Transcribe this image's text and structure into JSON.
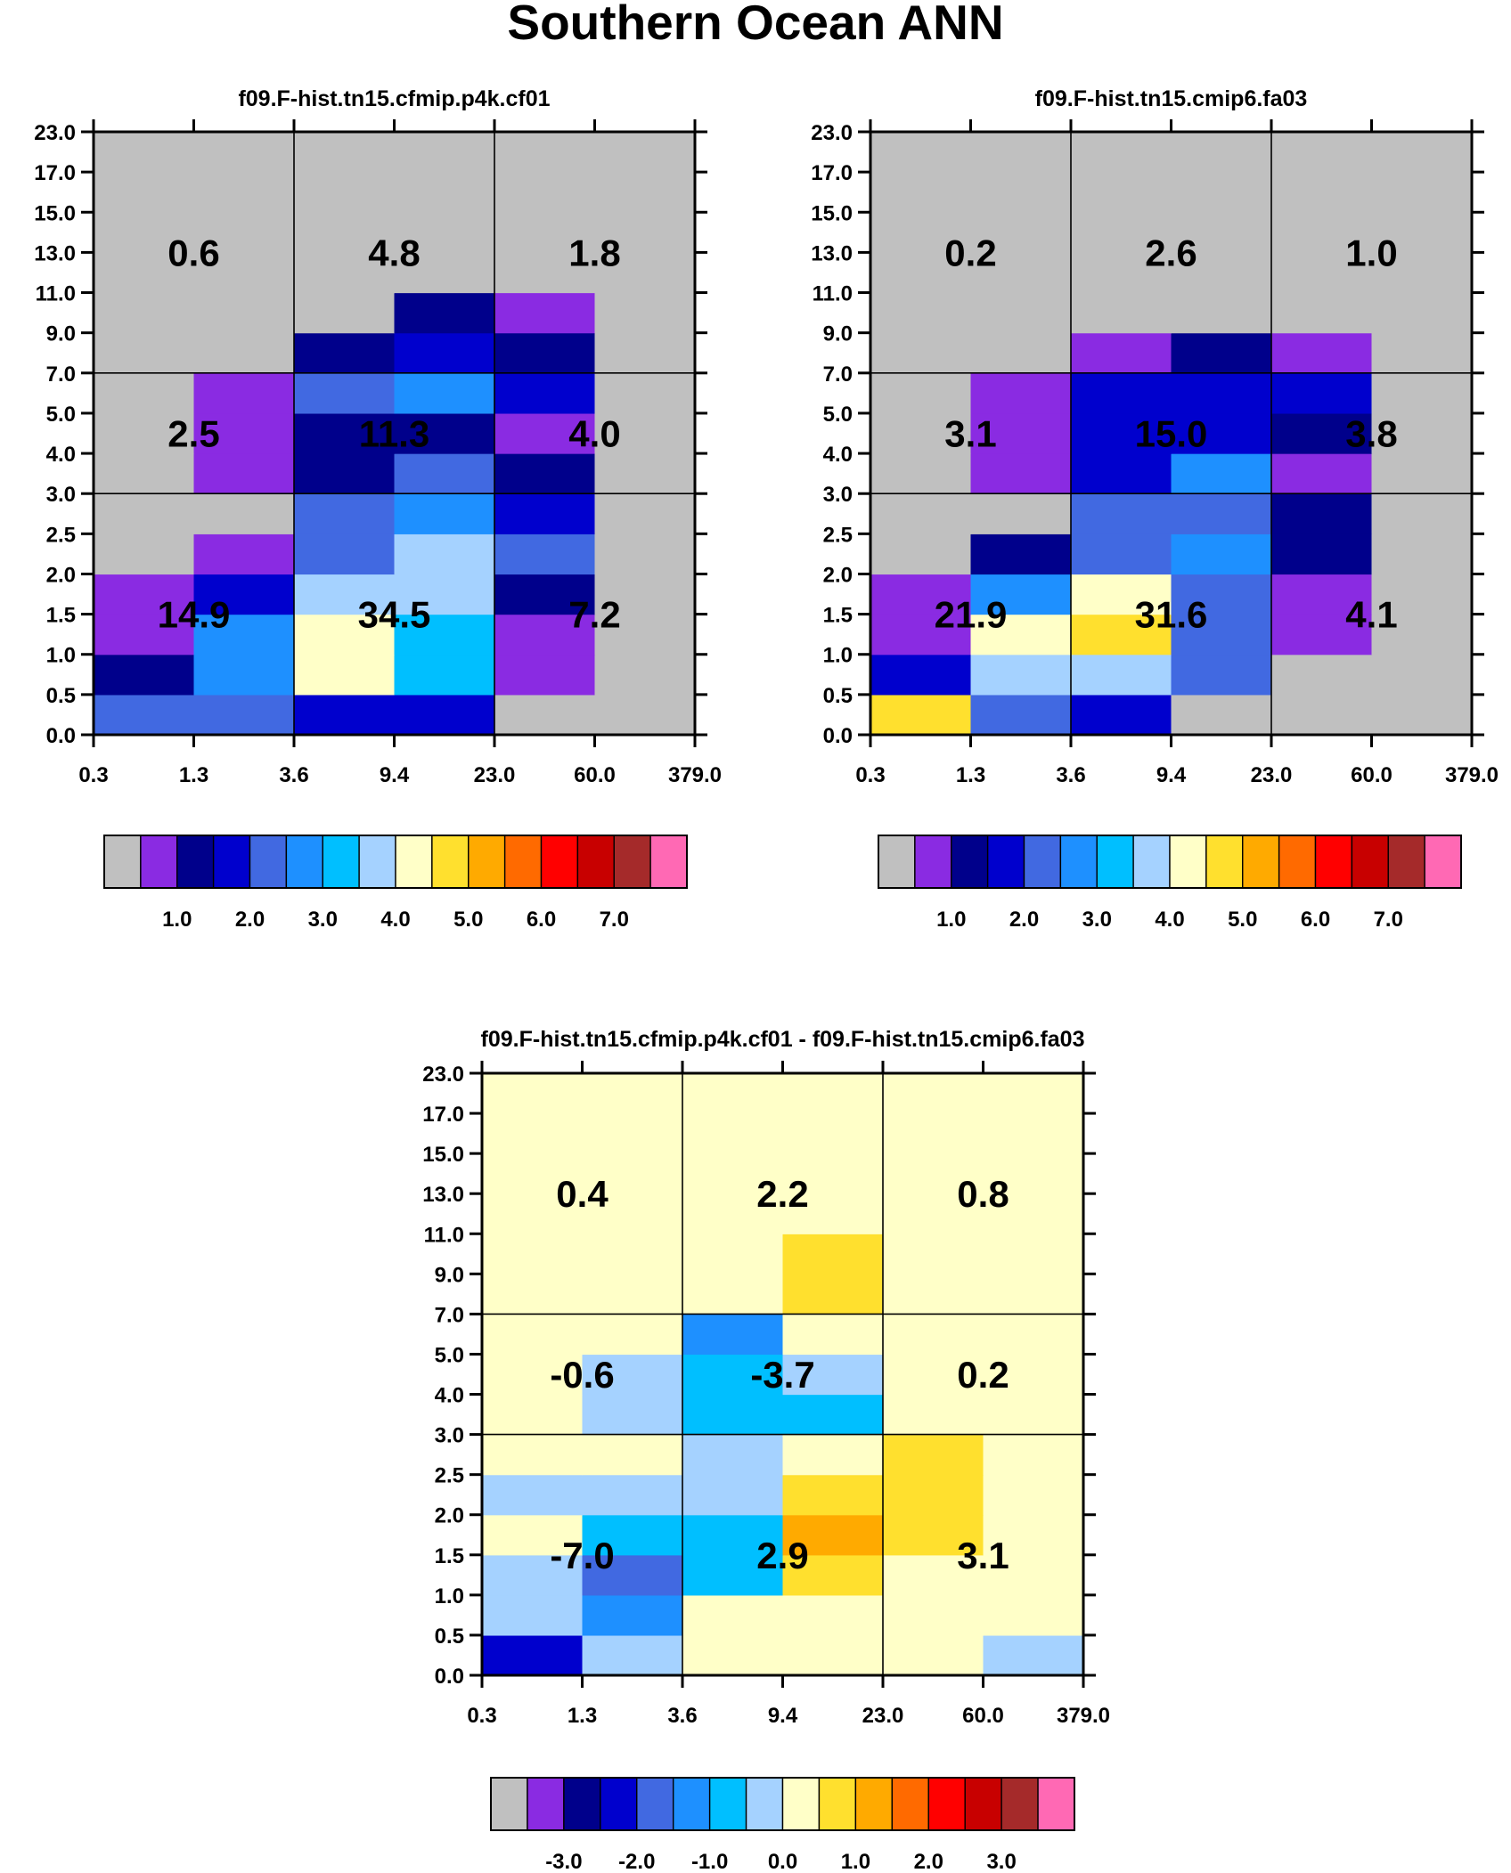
{
  "figure_title": "Southern Ocean ANN",
  "palette": [
    "#c0c0c0",
    "#8a2be2",
    "#00008b",
    "#0000cd",
    "#4169e1",
    "#1e90ff",
    "#00bfff",
    "#a5d2ff",
    "#ffffc8",
    "#ffe02e",
    "#ffaa00",
    "#ff6a00",
    "#ff0000",
    "#c80000",
    "#a52a2a",
    "#ff69b4"
  ],
  "chart_data": [
    {
      "type": "heatmap",
      "title": "f09.F-hist.tn15.cfmip.p4k.cf01",
      "x_ticks": [
        "0.3",
        "1.3",
        "3.6",
        "9.4",
        "23.0",
        "60.0",
        "379.0"
      ],
      "y_ticks": [
        "0.0",
        "0.5",
        "1.0",
        "1.5",
        "2.0",
        "2.5",
        "3.0",
        "4.0",
        "5.0",
        "7.0",
        "9.0",
        "11.0",
        "13.0",
        "15.0",
        "17.0",
        "23.0"
      ],
      "grid_colors": [
        [
          4,
          4,
          3,
          3,
          0,
          0
        ],
        [
          2,
          5,
          8,
          6,
          1,
          0
        ],
        [
          1,
          5,
          8,
          6,
          1,
          0
        ],
        [
          1,
          3,
          7,
          7,
          2,
          0
        ],
        [
          0,
          1,
          4,
          7,
          4,
          0
        ],
        [
          0,
          0,
          4,
          5,
          3,
          0
        ],
        [
          0,
          1,
          2,
          4,
          2,
          0
        ],
        [
          0,
          1,
          2,
          2,
          1,
          0
        ],
        [
          0,
          1,
          4,
          5,
          3,
          0
        ],
        [
          0,
          0,
          2,
          3,
          2,
          0
        ],
        [
          0,
          0,
          0,
          2,
          1,
          0
        ],
        [
          0,
          0,
          0,
          0,
          0,
          0
        ],
        [
          0,
          0,
          0,
          0,
          0,
          0
        ],
        [
          0,
          0,
          0,
          0,
          0,
          0
        ],
        [
          0,
          0,
          0,
          0,
          0,
          0
        ]
      ],
      "boxes": [
        {
          "label": "14.9",
          "col": 0,
          "row": 0
        },
        {
          "label": "34.5",
          "col": 1,
          "row": 0
        },
        {
          "label": "7.2",
          "col": 2,
          "row": 0
        },
        {
          "label": "2.5",
          "col": 0,
          "row": 1
        },
        {
          "label": "11.3",
          "col": 1,
          "row": 1
        },
        {
          "label": "4.0",
          "col": 2,
          "row": 1
        },
        {
          "label": "0.6",
          "col": 0,
          "row": 2
        },
        {
          "label": "4.8",
          "col": 1,
          "row": 2
        },
        {
          "label": "1.8",
          "col": 2,
          "row": 2
        }
      ],
      "colorbar_labels": [
        "1.0",
        "2.0",
        "3.0",
        "4.0",
        "5.0",
        "6.0",
        "7.0"
      ]
    },
    {
      "type": "heatmap",
      "title": "f09.F-hist.tn15.cmip6.fa03",
      "x_ticks": [
        "0.3",
        "1.3",
        "3.6",
        "9.4",
        "23.0",
        "60.0",
        "379.0"
      ],
      "y_ticks": [
        "0.0",
        "0.5",
        "1.0",
        "1.5",
        "2.0",
        "2.5",
        "3.0",
        "4.0",
        "5.0",
        "7.0",
        "9.0",
        "11.0",
        "13.0",
        "15.0",
        "17.0",
        "23.0"
      ],
      "grid_colors": [
        [
          9,
          4,
          3,
          0,
          0,
          0
        ],
        [
          3,
          7,
          7,
          4,
          0,
          0
        ],
        [
          1,
          8,
          9,
          4,
          1,
          0
        ],
        [
          1,
          5,
          8,
          4,
          1,
          0
        ],
        [
          0,
          2,
          4,
          5,
          2,
          0
        ],
        [
          0,
          0,
          4,
          4,
          2,
          0
        ],
        [
          0,
          1,
          3,
          5,
          1,
          0
        ],
        [
          0,
          1,
          3,
          3,
          2,
          0
        ],
        [
          0,
          1,
          3,
          3,
          3,
          0
        ],
        [
          0,
          0,
          1,
          2,
          1,
          0
        ],
        [
          0,
          0,
          0,
          0,
          0,
          0
        ],
        [
          0,
          0,
          0,
          0,
          0,
          0
        ],
        [
          0,
          0,
          0,
          0,
          0,
          0
        ],
        [
          0,
          0,
          0,
          0,
          0,
          0
        ],
        [
          0,
          0,
          0,
          0,
          0,
          0
        ]
      ],
      "boxes": [
        {
          "label": "21.9",
          "col": 0,
          "row": 0
        },
        {
          "label": "31.6",
          "col": 1,
          "row": 0
        },
        {
          "label": "4.1",
          "col": 2,
          "row": 0
        },
        {
          "label": "3.1",
          "col": 0,
          "row": 1
        },
        {
          "label": "15.0",
          "col": 1,
          "row": 1
        },
        {
          "label": "3.8",
          "col": 2,
          "row": 1
        },
        {
          "label": "0.2",
          "col": 0,
          "row": 2
        },
        {
          "label": "2.6",
          "col": 1,
          "row": 2
        },
        {
          "label": "1.0",
          "col": 2,
          "row": 2
        }
      ],
      "colorbar_labels": [
        "1.0",
        "2.0",
        "3.0",
        "4.0",
        "5.0",
        "6.0",
        "7.0"
      ]
    },
    {
      "type": "heatmap",
      "title": "f09.F-hist.tn15.cfmip.p4k.cf01 - f09.F-hist.tn15.cmip6.fa03",
      "x_ticks": [
        "0.3",
        "1.3",
        "3.6",
        "9.4",
        "23.0",
        "60.0",
        "379.0"
      ],
      "y_ticks": [
        "0.0",
        "0.5",
        "1.0",
        "1.5",
        "2.0",
        "2.5",
        "3.0",
        "4.0",
        "5.0",
        "7.0",
        "9.0",
        "11.0",
        "13.0",
        "15.0",
        "17.0",
        "23.0"
      ],
      "grid_colors": [
        [
          3,
          7,
          8,
          8,
          8,
          7
        ],
        [
          7,
          5,
          8,
          8,
          8,
          8
        ],
        [
          7,
          4,
          6,
          9,
          8,
          8
        ],
        [
          8,
          6,
          6,
          10,
          9,
          8
        ],
        [
          7,
          7,
          7,
          9,
          9,
          8
        ],
        [
          8,
          8,
          7,
          8,
          9,
          8
        ],
        [
          8,
          7,
          6,
          6,
          8,
          8
        ],
        [
          8,
          7,
          6,
          7,
          8,
          8
        ],
        [
          8,
          8,
          5,
          8,
          8,
          8
        ],
        [
          8,
          8,
          8,
          9,
          8,
          8
        ],
        [
          8,
          8,
          8,
          9,
          8,
          8
        ],
        [
          8,
          8,
          8,
          8,
          8,
          8
        ],
        [
          8,
          8,
          8,
          8,
          8,
          8
        ],
        [
          8,
          8,
          8,
          8,
          8,
          8
        ],
        [
          8,
          8,
          8,
          8,
          8,
          8
        ]
      ],
      "boxes": [
        {
          "label": "-7.0",
          "col": 0,
          "row": 0
        },
        {
          "label": "2.9",
          "col": 1,
          "row": 0
        },
        {
          "label": "3.1",
          "col": 2,
          "row": 0
        },
        {
          "label": "-0.6",
          "col": 0,
          "row": 1
        },
        {
          "label": "-3.7",
          "col": 1,
          "row": 1
        },
        {
          "label": "0.2",
          "col": 2,
          "row": 1
        },
        {
          "label": "0.4",
          "col": 0,
          "row": 2
        },
        {
          "label": "2.2",
          "col": 1,
          "row": 2
        },
        {
          "label": "0.8",
          "col": 2,
          "row": 2
        }
      ],
      "colorbar_labels": [
        "-3.0",
        "-2.0",
        "-1.0",
        "0.0",
        "1.0",
        "2.0",
        "3.0"
      ]
    }
  ]
}
